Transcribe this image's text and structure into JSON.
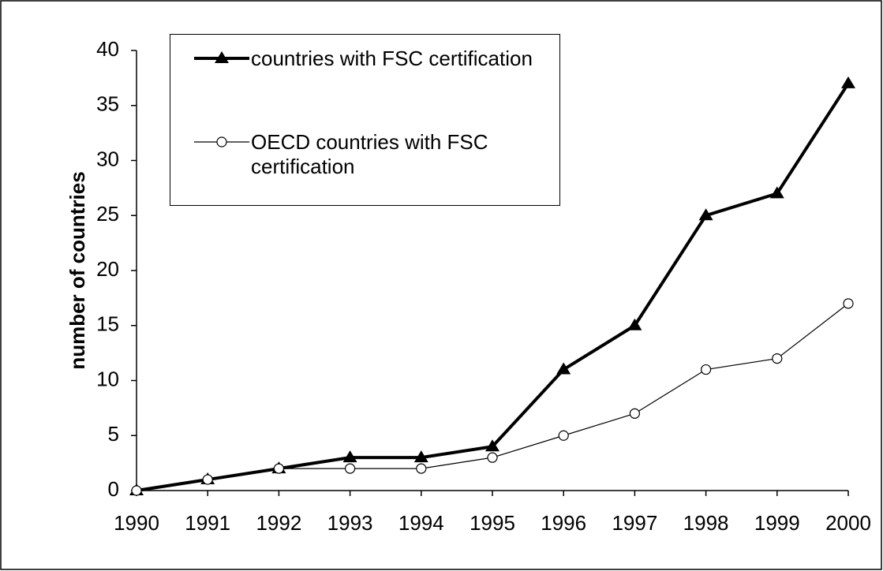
{
  "chart_data": {
    "type": "line",
    "y_label": "number of countries",
    "categories": [
      "1990",
      "1991",
      "1992",
      "1993",
      "1994",
      "1995",
      "1996",
      "1997",
      "1998",
      "1999",
      "2000"
    ],
    "series": [
      {
        "name": "countries with FSC certification",
        "color": "#000000",
        "marker": "triangle",
        "values": [
          0,
          1,
          2,
          3,
          3,
          4,
          11,
          15,
          25,
          27,
          37
        ]
      },
      {
        "name": "OECD countries with FSC certification",
        "color": "#000000",
        "marker": "circle",
        "values": [
          0,
          1,
          2,
          2,
          2,
          3,
          5,
          7,
          11,
          12,
          17
        ]
      }
    ],
    "ylim": [
      0,
      40
    ],
    "yticks": [
      0,
      5,
      10,
      15,
      20,
      25,
      30,
      35,
      40
    ],
    "grid": false,
    "legend": "upper left"
  }
}
